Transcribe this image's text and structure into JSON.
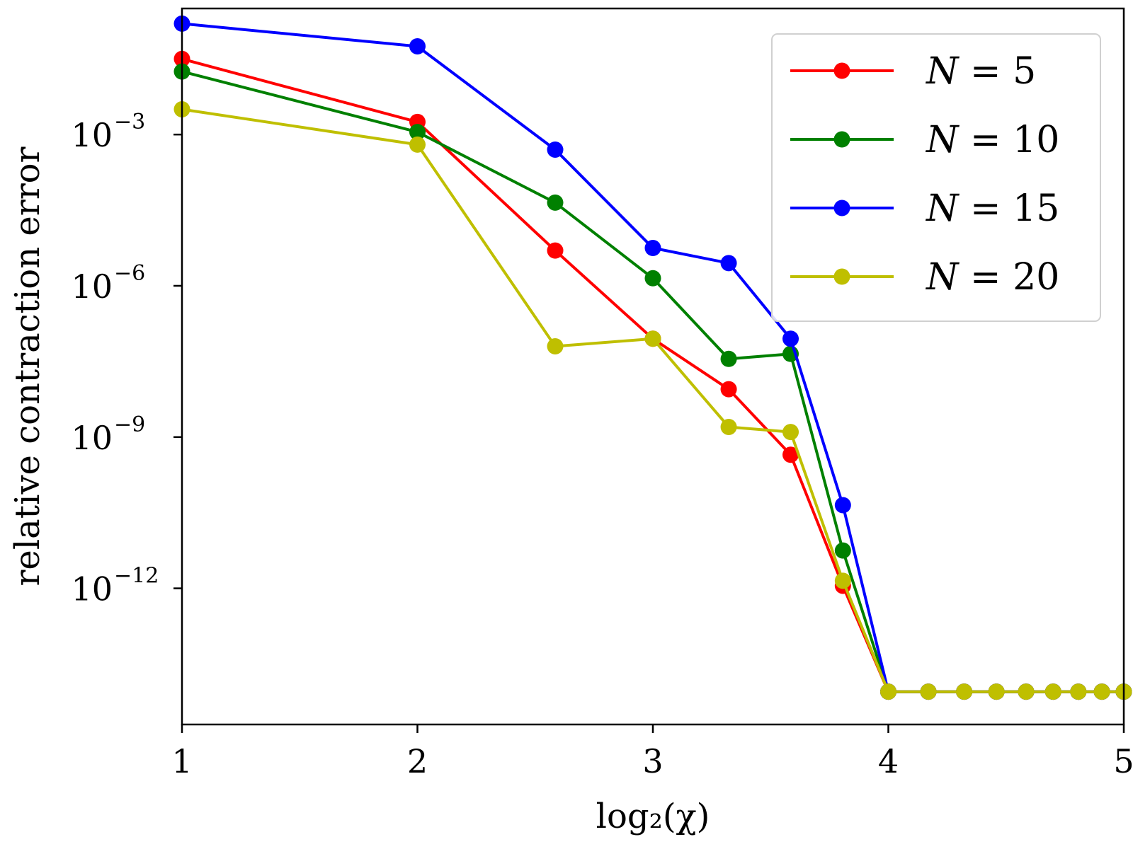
{
  "chart_data": {
    "type": "line",
    "title": "",
    "xlabel": "log₂(χ)",
    "ylabel": "relative contraction error",
    "xlim": [
      1,
      5
    ],
    "ylim_log10": [
      -14.7,
      -0.5
    ],
    "grid": false,
    "legend_position": "top-right",
    "x_ticks": [
      {
        "value": 1,
        "label": "1"
      },
      {
        "value": 2,
        "label": "2"
      },
      {
        "value": 3,
        "label": "3"
      },
      {
        "value": 4,
        "label": "4"
      },
      {
        "value": 5,
        "label": "5"
      }
    ],
    "y_ticks": [
      {
        "log10": -3,
        "base": "10",
        "exp": "−3"
      },
      {
        "log10": -6,
        "base": "10",
        "exp": "−6"
      },
      {
        "log10": -9,
        "base": "10",
        "exp": "−9"
      },
      {
        "log10": -12,
        "base": "10",
        "exp": "−12"
      }
    ],
    "x": [
      1,
      2,
      2.585,
      3,
      3.322,
      3.585,
      3.807,
      4,
      4.17,
      4.322,
      4.459,
      4.585,
      4.7,
      4.807,
      4.907,
      5
    ],
    "series": [
      {
        "name": "N = 5",
        "label_var": "N",
        "label_val": "5",
        "color": "#ff0000",
        "log10_values": [
          -1.5,
          -2.75,
          -5.3,
          -7.05,
          -8.05,
          -9.35,
          -11.95,
          -14.05,
          -14.05,
          -14.05,
          -14.05,
          -14.05,
          -14.05,
          -14.05,
          -14.05,
          -14.05
        ]
      },
      {
        "name": "N = 10",
        "label_var": "N",
        "label_val": "10",
        "color": "#008000",
        "log10_values": [
          -1.75,
          -2.95,
          -4.35,
          -5.85,
          -7.45,
          -7.35,
          -11.25,
          -14.05,
          -14.05,
          -14.05,
          -14.05,
          -14.05,
          -14.05,
          -14.05,
          -14.05,
          -14.05
        ]
      },
      {
        "name": "N = 15",
        "label_var": "N",
        "label_val": "15",
        "color": "#0000ff",
        "log10_values": [
          -0.8,
          -1.25,
          -3.3,
          -5.25,
          -5.55,
          -7.05,
          -10.35,
          -14.05,
          -14.05,
          -14.05,
          -14.05,
          -14.05,
          -14.05,
          -14.05,
          -14.05,
          -14.05
        ]
      },
      {
        "name": "N = 20",
        "label_var": "N",
        "label_val": "20",
        "color": "#bfbf00",
        "log10_values": [
          -2.5,
          -3.2,
          -7.2,
          -7.05,
          -8.8,
          -8.9,
          -11.85,
          -14.05,
          -14.05,
          -14.05,
          -14.05,
          -14.05,
          -14.05,
          -14.05,
          -14.05,
          -14.05
        ]
      }
    ]
  }
}
